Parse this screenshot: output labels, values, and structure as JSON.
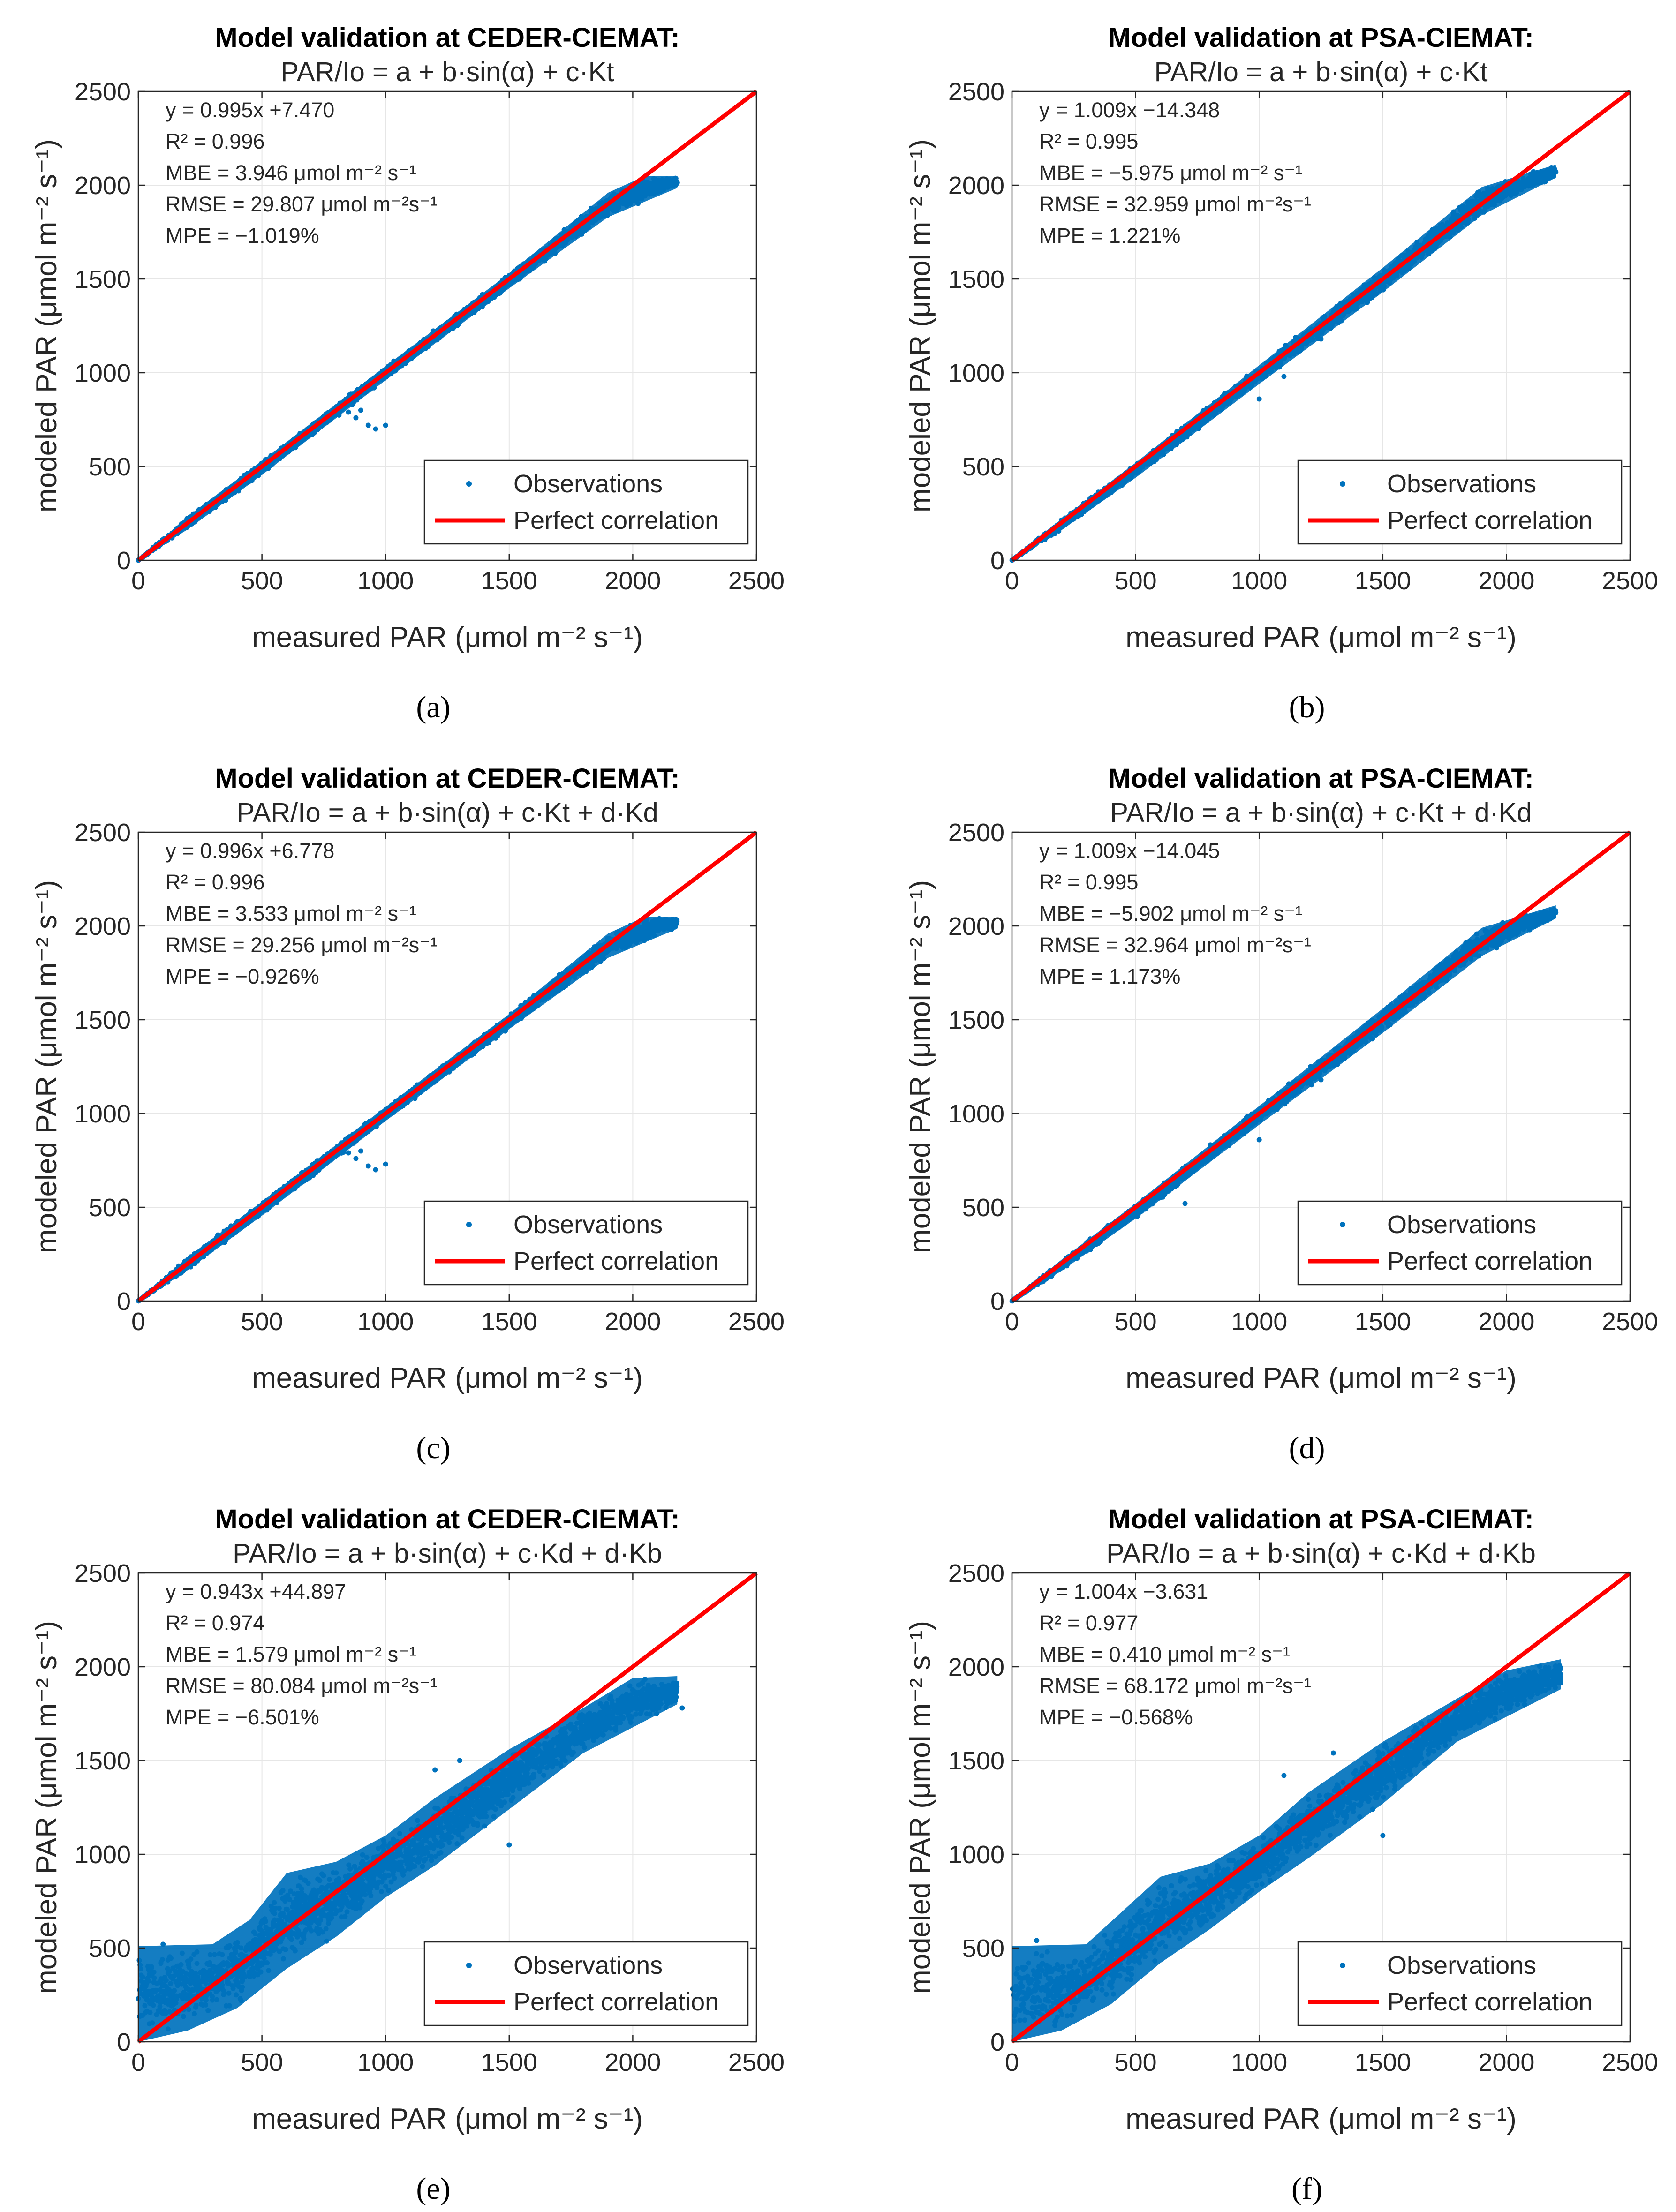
{
  "figure": {
    "x_axis_label": "measured PAR (μmol m⁻² s⁻¹)",
    "y_axis_label": "modeled PAR (μmol m⁻² s⁻¹)",
    "legend_observations": "Observations",
    "legend_perfect": "Perfect correlation",
    "colors": {
      "observations": "#0072bd",
      "perfect": "#ff0000",
      "grid": "#e6e6e6",
      "axis": "#262626"
    }
  },
  "chart_data": [
    {
      "id": "a",
      "panel_label": "(a)",
      "type": "scatter",
      "title_line1": "Model validation at CEDER-CIEMAT:",
      "title_line2": "PAR/Io = a + b·sin(α) + c·Kt",
      "xlim": [
        0,
        2500
      ],
      "ylim": [
        0,
        2500
      ],
      "xticks": [
        0,
        500,
        1000,
        1500,
        2000,
        2500
      ],
      "yticks": [
        0,
        500,
        1000,
        1500,
        2000,
        2500
      ],
      "stats": [
        "y = 0.995x +7.470",
        "R² = 0.996",
        "MBE = 3.946 μmol m⁻² s⁻¹",
        "RMSE = 29.807 μmol m⁻²s⁻¹",
        "MPE = −1.019%"
      ],
      "fit": {
        "slope": 0.995,
        "intercept": 7.47
      },
      "cloud": {
        "x_range": [
          0,
          2180
        ],
        "max_y": 2050,
        "upper": [
          [
            0,
            0
          ],
          [
            200,
            235
          ],
          [
            500,
            530
          ],
          [
            1000,
            1035
          ],
          [
            1500,
            1530
          ],
          [
            1900,
            1960
          ],
          [
            2050,
            2050
          ],
          [
            2180,
            2050
          ]
        ],
        "lower": [
          [
            0,
            0
          ],
          [
            200,
            165
          ],
          [
            500,
            455
          ],
          [
            1000,
            960
          ],
          [
            1500,
            1450
          ],
          [
            1900,
            1830
          ],
          [
            2180,
            1985
          ]
        ],
        "outliers": [
          [
            880,
            760
          ],
          [
            930,
            720
          ],
          [
            960,
            700
          ],
          [
            1000,
            720
          ],
          [
            900,
            800
          ],
          [
            850,
            790
          ]
        ]
      },
      "grid": true,
      "legend_location": "bottom-right"
    },
    {
      "id": "b",
      "panel_label": "(b)",
      "type": "scatter",
      "title_line1": "Model validation at PSA-CIEMAT:",
      "title_line2": "PAR/Io = a + b·sin(α) + c·Kt",
      "xlim": [
        0,
        2500
      ],
      "ylim": [
        0,
        2500
      ],
      "xticks": [
        0,
        500,
        1000,
        1500,
        2000,
        2500
      ],
      "yticks": [
        0,
        500,
        1000,
        1500,
        2000,
        2500
      ],
      "stats": [
        "y = 1.009x −14.348",
        "R² = 0.995",
        "MBE = −5.975 μmol m⁻² s⁻¹",
        "RMSE = 32.959 μmol m⁻²s⁻¹",
        "MPE = 1.221%"
      ],
      "fit": {
        "slope": 1.009,
        "intercept": -14.348
      },
      "cloud": {
        "x_range": [
          0,
          2200
        ],
        "max_y": 2110,
        "upper": [
          [
            0,
            0
          ],
          [
            200,
            220
          ],
          [
            500,
            520
          ],
          [
            1000,
            1040
          ],
          [
            1500,
            1560
          ],
          [
            1900,
            1990
          ],
          [
            2200,
            2110
          ]
        ],
        "lower": [
          [
            0,
            0
          ],
          [
            200,
            160
          ],
          [
            500,
            440
          ],
          [
            1000,
            940
          ],
          [
            1500,
            1430
          ],
          [
            1900,
            1840
          ],
          [
            2200,
            2040
          ]
        ],
        "outliers": [
          [
            1000,
            860
          ],
          [
            1100,
            980
          ],
          [
            1250,
            1180
          ]
        ]
      },
      "grid": true,
      "legend_location": "bottom-right"
    },
    {
      "id": "c",
      "panel_label": "(c)",
      "type": "scatter",
      "title_line1": "Model validation at CEDER-CIEMAT:",
      "title_line2": "PAR/Io = a + b·sin(α) + c·Kt + d·Kd",
      "xlim": [
        0,
        2500
      ],
      "ylim": [
        0,
        2500
      ],
      "xticks": [
        0,
        500,
        1000,
        1500,
        2000,
        2500
      ],
      "yticks": [
        0,
        500,
        1000,
        1500,
        2000,
        2500
      ],
      "stats": [
        "y = 0.996x +6.778",
        "R² = 0.996",
        "MBE = 3.533 μmol m⁻² s⁻¹",
        "RMSE = 29.256 μmol m⁻²s⁻¹",
        "MPE = −0.926%"
      ],
      "fit": {
        "slope": 0.996,
        "intercept": 6.778
      },
      "cloud": {
        "x_range": [
          0,
          2180
        ],
        "max_y": 2050,
        "upper": [
          [
            0,
            0
          ],
          [
            200,
            235
          ],
          [
            500,
            530
          ],
          [
            1000,
            1035
          ],
          [
            1500,
            1530
          ],
          [
            1900,
            1960
          ],
          [
            2050,
            2050
          ],
          [
            2180,
            2050
          ]
        ],
        "lower": [
          [
            0,
            0
          ],
          [
            200,
            165
          ],
          [
            500,
            455
          ],
          [
            1000,
            960
          ],
          [
            1500,
            1450
          ],
          [
            1900,
            1830
          ],
          [
            2180,
            1985
          ]
        ],
        "outliers": [
          [
            880,
            760
          ],
          [
            930,
            720
          ],
          [
            960,
            700
          ],
          [
            1000,
            730
          ],
          [
            900,
            800
          ],
          [
            850,
            790
          ]
        ]
      },
      "grid": true,
      "legend_location": "bottom-right"
    },
    {
      "id": "d",
      "panel_label": "(d)",
      "type": "scatter",
      "title_line1": "Model validation at PSA-CIEMAT:",
      "title_line2": "PAR/Io = a + b·sin(α) + c·Kt + d·Kd",
      "xlim": [
        0,
        2500
      ],
      "ylim": [
        0,
        2500
      ],
      "xticks": [
        0,
        500,
        1000,
        1500,
        2000,
        2500
      ],
      "yticks": [
        0,
        500,
        1000,
        1500,
        2000,
        2500
      ],
      "stats": [
        "y = 1.009x −14.045",
        "R² = 0.995",
        "MBE = −5.902 μmol m⁻² s⁻¹",
        "RMSE = 32.964 μmol m⁻²s⁻¹",
        "MPE = 1.173%"
      ],
      "fit": {
        "slope": 1.009,
        "intercept": -14.045
      },
      "cloud": {
        "x_range": [
          0,
          2200
        ],
        "max_y": 2110,
        "upper": [
          [
            0,
            0
          ],
          [
            200,
            220
          ],
          [
            500,
            520
          ],
          [
            1000,
            1040
          ],
          [
            1500,
            1560
          ],
          [
            1900,
            1990
          ],
          [
            2200,
            2110
          ]
        ],
        "lower": [
          [
            0,
            0
          ],
          [
            200,
            160
          ],
          [
            500,
            440
          ],
          [
            1000,
            940
          ],
          [
            1500,
            1430
          ],
          [
            1900,
            1840
          ],
          [
            2200,
            2040
          ]
        ],
        "outliers": [
          [
            700,
            520
          ],
          [
            1000,
            860
          ],
          [
            1250,
            1180
          ]
        ]
      },
      "grid": true,
      "legend_location": "bottom-right"
    },
    {
      "id": "e",
      "panel_label": "(e)",
      "type": "scatter",
      "title_line1": "Model validation at CEDER-CIEMAT:",
      "title_line2": "PAR/Io = a + b·sin(α) + c·Kd + d·Kb",
      "xlim": [
        0,
        2500
      ],
      "ylim": [
        0,
        2500
      ],
      "xticks": [
        0,
        500,
        1000,
        1500,
        2000,
        2500
      ],
      "yticks": [
        0,
        500,
        1000,
        1500,
        2000,
        2500
      ],
      "stats": [
        "y = 0.943x +44.897",
        "R² = 0.974",
        "MBE = 1.579 μmol m⁻² s⁻¹",
        "RMSE = 80.084 μmol m⁻²s⁻¹",
        "MPE = −6.501%"
      ],
      "fit": {
        "slope": 0.943,
        "intercept": 44.897
      },
      "cloud": {
        "x_range": [
          0,
          2180
        ],
        "max_y": 1960,
        "upper": [
          [
            0,
            510
          ],
          [
            300,
            520
          ],
          [
            450,
            650
          ],
          [
            600,
            900
          ],
          [
            800,
            960
          ],
          [
            1000,
            1100
          ],
          [
            1200,
            1300
          ],
          [
            1500,
            1560
          ],
          [
            1800,
            1780
          ],
          [
            2000,
            1940
          ],
          [
            2180,
            1950
          ]
        ],
        "lower": [
          [
            0,
            0
          ],
          [
            200,
            60
          ],
          [
            400,
            180
          ],
          [
            600,
            390
          ],
          [
            800,
            560
          ],
          [
            1000,
            770
          ],
          [
            1200,
            940
          ],
          [
            1500,
            1240
          ],
          [
            1800,
            1540
          ],
          [
            2180,
            1800
          ]
        ],
        "outliers": [
          [
            1200,
            1450
          ],
          [
            1300,
            1500
          ],
          [
            1500,
            1050
          ],
          [
            1400,
            1150
          ],
          [
            100,
            520
          ],
          [
            2200,
            1780
          ]
        ]
      },
      "grid": true,
      "legend_location": "bottom-right"
    },
    {
      "id": "f",
      "panel_label": "(f)",
      "type": "scatter",
      "title_line1": "Model validation at PSA-CIEMAT:",
      "title_line2": "PAR/Io = a + b·sin(α) + c·Kd + d·Kb",
      "xlim": [
        0,
        2500
      ],
      "ylim": [
        0,
        2500
      ],
      "xticks": [
        0,
        500,
        1000,
        1500,
        2000,
        2500
      ],
      "yticks": [
        0,
        500,
        1000,
        1500,
        2000,
        2500
      ],
      "stats": [
        "y = 1.004x −3.631",
        "R² = 0.977",
        "MBE = 0.410 μmol m⁻² s⁻¹",
        "RMSE = 68.172 μmol m⁻²s⁻¹",
        "MPE = −0.568%"
      ],
      "fit": {
        "slope": 1.004,
        "intercept": -3.631
      },
      "cloud": {
        "x_range": [
          0,
          2220
        ],
        "max_y": 2040,
        "upper": [
          [
            0,
            510
          ],
          [
            300,
            520
          ],
          [
            450,
            700
          ],
          [
            600,
            880
          ],
          [
            800,
            950
          ],
          [
            1000,
            1100
          ],
          [
            1200,
            1330
          ],
          [
            1500,
            1600
          ],
          [
            1800,
            1830
          ],
          [
            2000,
            1980
          ],
          [
            2220,
            2040
          ]
        ],
        "lower": [
          [
            0,
            0
          ],
          [
            200,
            60
          ],
          [
            400,
            200
          ],
          [
            600,
            420
          ],
          [
            800,
            600
          ],
          [
            1000,
            800
          ],
          [
            1200,
            980
          ],
          [
            1500,
            1270
          ],
          [
            1800,
            1600
          ],
          [
            2220,
            1880
          ]
        ],
        "outliers": [
          [
            1300,
            1540
          ],
          [
            1100,
            1420
          ],
          [
            100,
            540
          ],
          [
            1500,
            1100
          ]
        ]
      },
      "grid": true,
      "legend_location": "bottom-right"
    }
  ]
}
